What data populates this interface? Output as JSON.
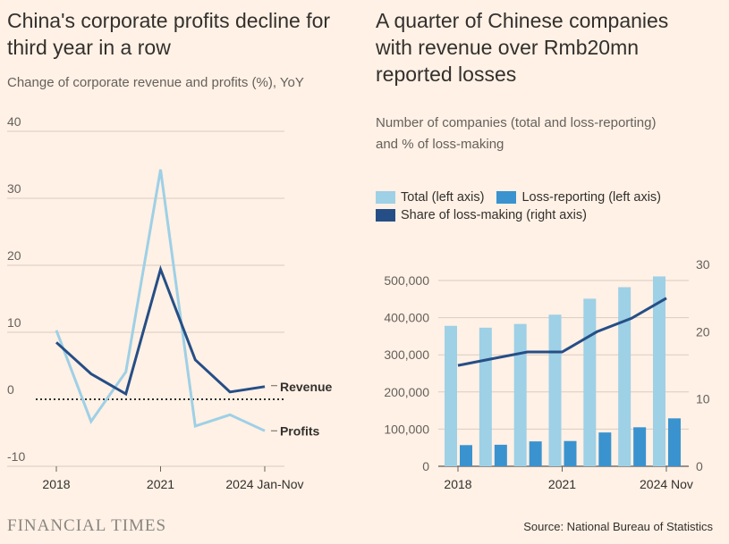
{
  "left_chart": {
    "title_line1": "China's corporate profits decline for",
    "title_line2": "third year in a row",
    "subtitle": "Change of corporate revenue and profits (%), YoY"
  },
  "right_chart": {
    "title_line1": "A quarter of Chinese companies",
    "title_line2": "with revenue over Rmb20mn",
    "title_line3": "reported losses",
    "subtitle_line1": "Number of companies (total and loss-reporting)",
    "subtitle_line2": "and % of loss-making",
    "legend": {
      "total": "Total (left axis)",
      "loss": "Loss-reporting (left axis)",
      "share": "Share of loss-making (right axis)"
    }
  },
  "footer": {
    "logo": "FINANCIAL TIMES",
    "source": "Source: National Bureau of Statistics"
  },
  "colors": {
    "background": "#fff1e5",
    "revenue": "#264e86",
    "profits": "#9ed0e6",
    "total": "#9ed0e6",
    "loss": "#3a93cf",
    "share": "#264e86",
    "grid": "#d9ccc1",
    "text": "#33302e"
  },
  "chart_data": [
    {
      "type": "line",
      "x": [
        "2018",
        "2019",
        "2020",
        "2021",
        "2022",
        "2023",
        "2024 Jan-Nov"
      ],
      "x_tick_labels": [
        "2018",
        "2021",
        "2024 Jan-Nov"
      ],
      "series": [
        {
          "name": "Revenue",
          "values": [
            8.5,
            3.8,
            0.8,
            19.4,
            5.9,
            1.1,
            1.9
          ]
        },
        {
          "name": "Profits",
          "values": [
            10.3,
            -3.3,
            4.1,
            34.3,
            -4.0,
            -2.3,
            -4.7
          ]
        }
      ],
      "ylim": [
        -10,
        40
      ],
      "y_ticks": [
        -10,
        0,
        10,
        20,
        30,
        40
      ],
      "zero_line": "dotted",
      "grid": true
    },
    {
      "type": "bar",
      "categories": [
        "2018",
        "2019",
        "2020",
        "2021",
        "2022",
        "2023",
        "2024 Nov"
      ],
      "x_tick_labels": [
        "2018",
        "2021",
        "2024 Nov"
      ],
      "series": [
        {
          "name": "Total (left axis)",
          "values": [
            378000,
            373000,
            383000,
            408000,
            451000,
            482000,
            511000
          ]
        },
        {
          "name": "Loss-reporting (left axis)",
          "values": [
            57000,
            58000,
            67000,
            68000,
            91000,
            105000,
            129000
          ]
        },
        {
          "name": "Share of loss-making (right axis)",
          "axis": "right",
          "values": [
            15,
            16,
            17,
            17,
            20,
            22,
            25
          ]
        }
      ],
      "ylim": [
        0,
        500000
      ],
      "y_ticks": [
        0,
        100000,
        200000,
        300000,
        400000,
        500000
      ],
      "y_tick_labels": [
        "0",
        "100,000",
        "200,000",
        "300,000",
        "400,000",
        "500,000"
      ],
      "y2lim": [
        0,
        30
      ],
      "y2_ticks": [
        0,
        10,
        20,
        30
      ],
      "legend_position": "top",
      "grid": true
    }
  ]
}
